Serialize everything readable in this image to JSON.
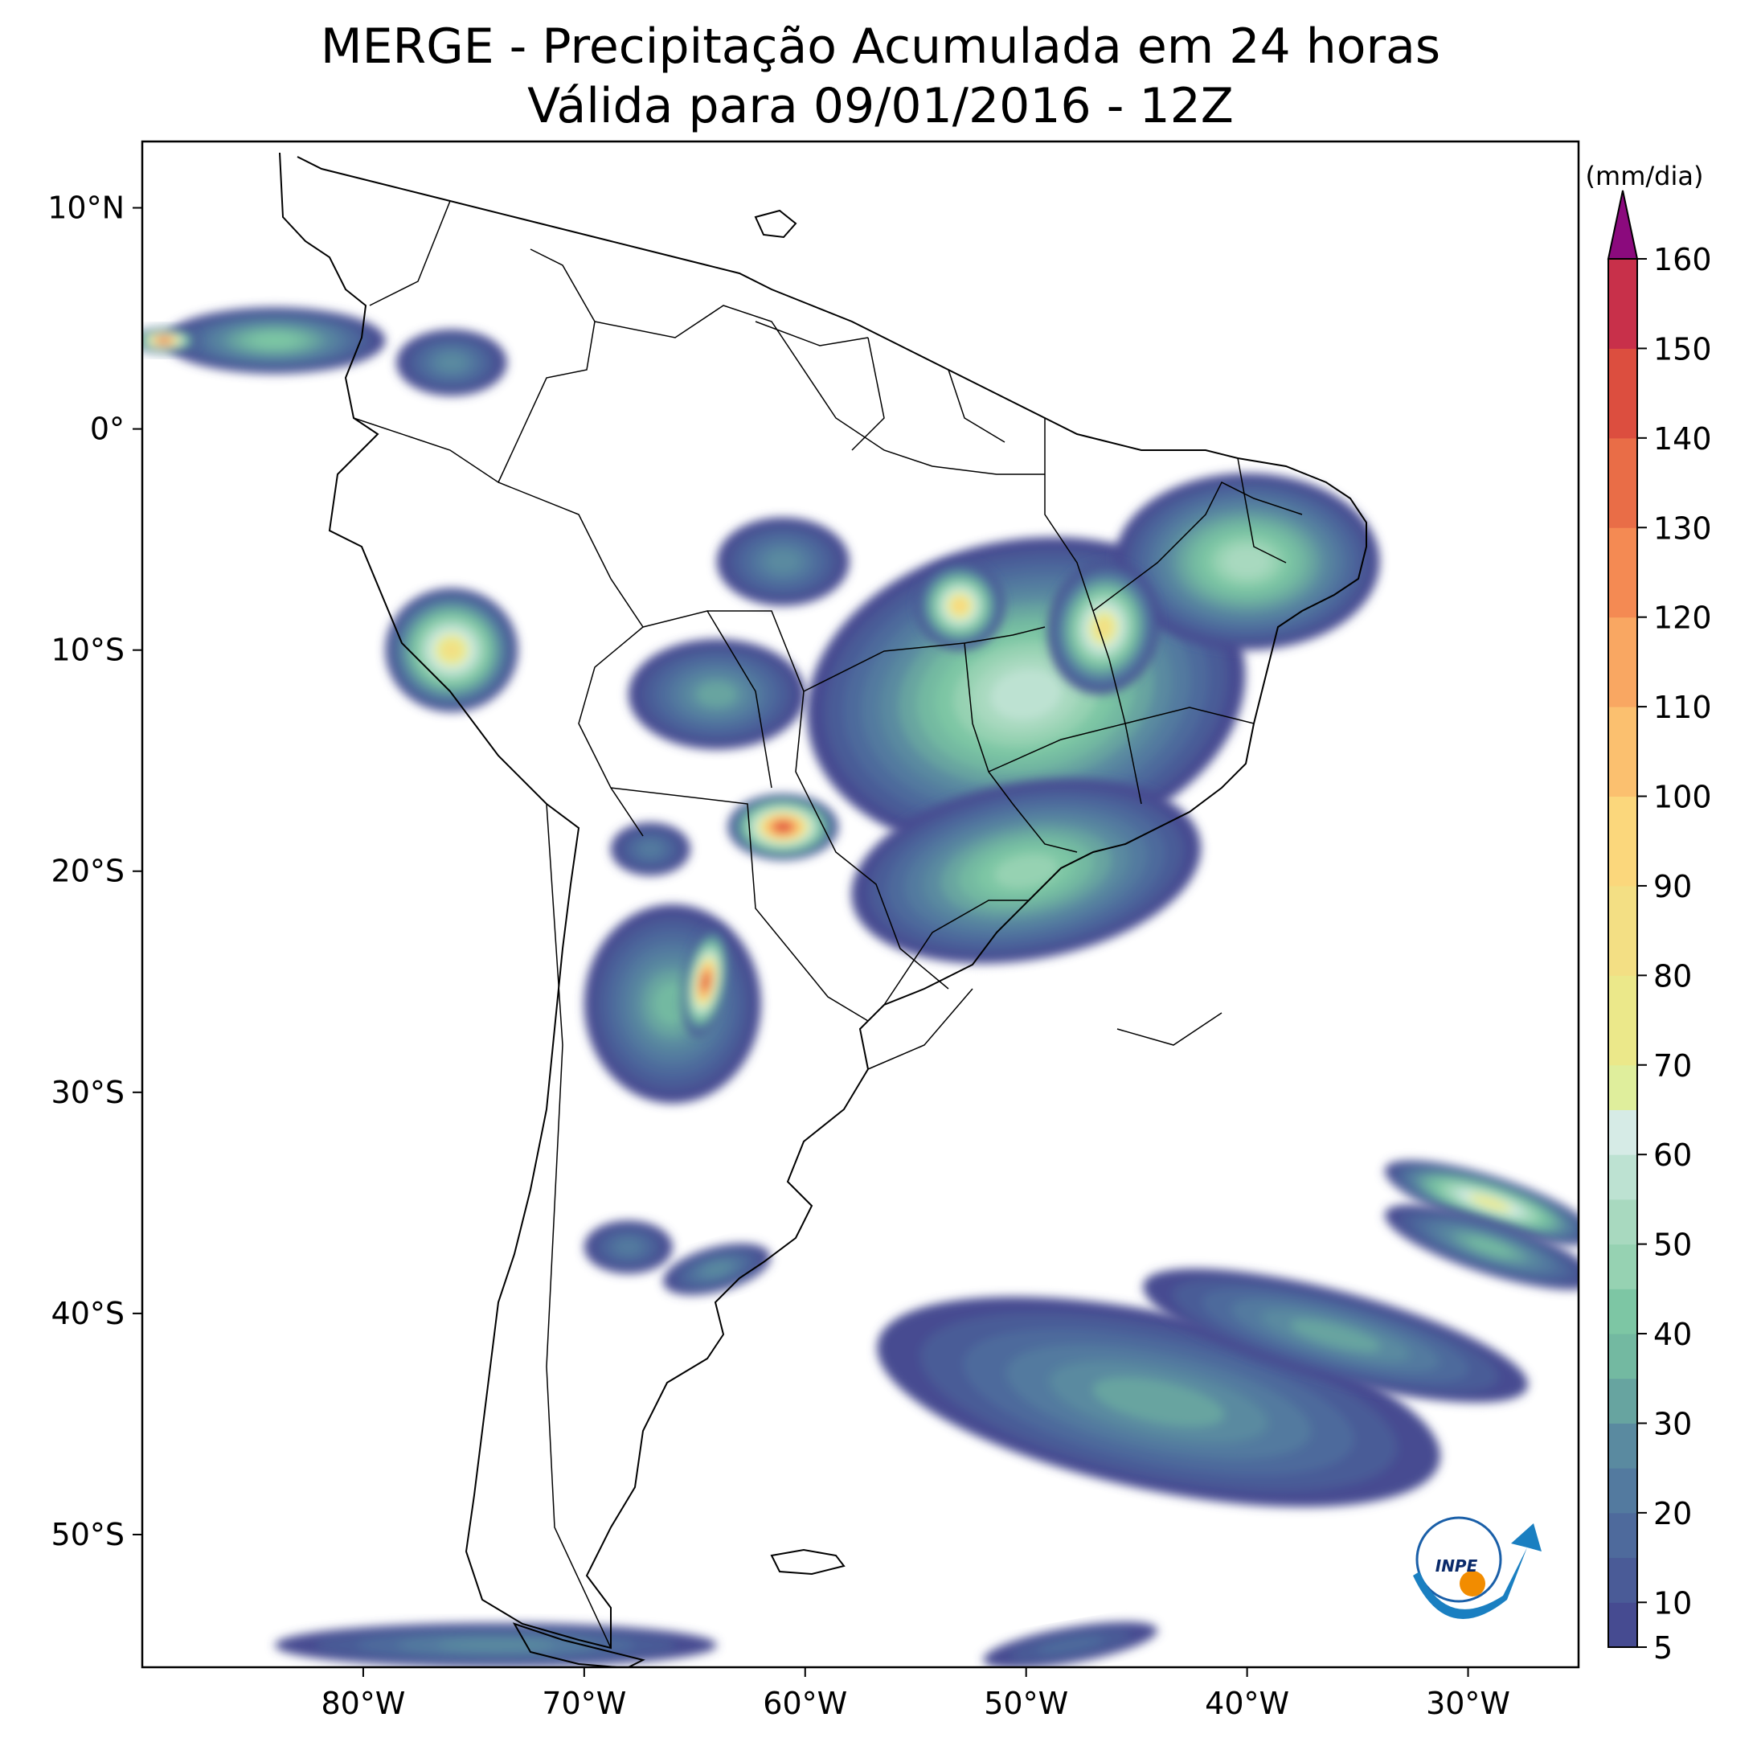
{
  "title": {
    "line1": "MERGE - Precipitação Acumulada em 24 horas",
    "line2": "Válida para 09/01/2016 - 12Z"
  },
  "map": {
    "lon_range": [
      -90,
      -25
    ],
    "lat_range": [
      -56,
      13
    ],
    "lon_ticks": [
      {
        "value": -80,
        "label": "80°W"
      },
      {
        "value": -70,
        "label": "70°W"
      },
      {
        "value": -60,
        "label": "60°W"
      },
      {
        "value": -50,
        "label": "50°W"
      },
      {
        "value": -40,
        "label": "40°W"
      },
      {
        "value": -30,
        "label": "30°W"
      }
    ],
    "lat_ticks": [
      {
        "value": 10,
        "label": "10°N"
      },
      {
        "value": 0,
        "label": "0°"
      },
      {
        "value": -10,
        "label": "10°S"
      },
      {
        "value": -20,
        "label": "20°S"
      },
      {
        "value": -30,
        "label": "30°S"
      },
      {
        "value": -40,
        "label": "40°S"
      },
      {
        "value": -50,
        "label": "50°S"
      }
    ],
    "rain_areas": [
      {
        "name": "amazon-brazil-central",
        "lon": -50,
        "lat": -12,
        "rx": 10,
        "ry": 7,
        "rot": -10,
        "peak": 60
      },
      {
        "name": "northeast-brazil",
        "lon": -40,
        "lat": -6,
        "rx": 6,
        "ry": 4,
        "rot": 0,
        "peak": 55
      },
      {
        "name": "tocantins-core",
        "lon": -46.5,
        "lat": -9,
        "rx": 2.5,
        "ry": 3,
        "rot": 10,
        "peak": 90
      },
      {
        "name": "mato-grosso",
        "lon": -53,
        "lat": -8,
        "rx": 2,
        "ry": 2,
        "rot": 0,
        "peak": 100
      },
      {
        "name": "south-central-brazil",
        "lon": -50,
        "lat": -20,
        "rx": 8,
        "ry": 4,
        "rot": -10,
        "peak": 50
      },
      {
        "name": "rondonia-bolivia",
        "lon": -64,
        "lat": -12,
        "rx": 4,
        "ry": 2.5,
        "rot": 0,
        "peak": 35
      },
      {
        "name": "amazonas-north",
        "lon": -61,
        "lat": -6,
        "rx": 3,
        "ry": 2,
        "rot": 0,
        "peak": 30
      },
      {
        "name": "peru",
        "lon": -76,
        "lat": -10,
        "rx": 3,
        "ry": 2.8,
        "rot": 0,
        "peak": 90
      },
      {
        "name": "mato-grosso-sul-hotspot",
        "lon": -61,
        "lat": -18,
        "rx": 2.5,
        "ry": 1.5,
        "rot": 0,
        "peak": 150
      },
      {
        "name": "paraguay-bolivia-west",
        "lon": -67,
        "lat": -19,
        "rx": 1.8,
        "ry": 1.2,
        "rot": 0,
        "peak": 25
      },
      {
        "name": "argentina-north",
        "lon": -66,
        "lat": -26,
        "rx": 4,
        "ry": 4.5,
        "rot": 0,
        "peak": 40
      },
      {
        "name": "argentina-north-core",
        "lon": -64.5,
        "lat": -25,
        "rx": 1,
        "ry": 2.5,
        "rot": 10,
        "peak": 150
      },
      {
        "name": "argentina-central",
        "lon": -68,
        "lat": -37,
        "rx": 2,
        "ry": 1.2,
        "rot": 0,
        "peak": 25
      },
      {
        "name": "argentina-south-central",
        "lon": -64,
        "lat": -38,
        "rx": 2.5,
        "ry": 1,
        "rot": -15,
        "peak": 30
      },
      {
        "name": "colombia-pacific",
        "lon": -84,
        "lat": 4,
        "rx": 5,
        "ry": 1.5,
        "rot": 0,
        "peak": 45
      },
      {
        "name": "colombia-pacific-core",
        "lon": -89,
        "lat": 4,
        "rx": 1.5,
        "ry": 0.6,
        "rot": 0,
        "peak": 150
      },
      {
        "name": "colombia-east",
        "lon": -76,
        "lat": 3,
        "rx": 2.5,
        "ry": 1.5,
        "rot": 0,
        "peak": 30
      },
      {
        "name": "atlantic-south-band",
        "lon": -44,
        "lat": -44,
        "rx": 13,
        "ry": 4,
        "rot": 12,
        "peak": 35
      },
      {
        "name": "atlantic-south-band-2",
        "lon": -36,
        "lat": -41,
        "rx": 9,
        "ry": 2,
        "rot": 15,
        "peak": 35
      },
      {
        "name": "atlantic-east-band",
        "lon": -29,
        "lat": -35,
        "rx": 5,
        "ry": 1.2,
        "rot": 18,
        "peak": 80
      },
      {
        "name": "atlantic-east-band-2",
        "lon": -29,
        "lat": -37,
        "rx": 5,
        "ry": 1.2,
        "rot": 18,
        "peak": 40
      },
      {
        "name": "drake-passage",
        "lon": -74,
        "lat": -55,
        "rx": 10,
        "ry": 1,
        "rot": 0,
        "peak": 30
      },
      {
        "name": "drake-passage-east",
        "lon": -48,
        "lat": -55,
        "rx": 4,
        "ry": 0.8,
        "rot": -10,
        "peak": 20
      }
    ]
  },
  "colorbar": {
    "unit": "(mm/dia)",
    "min": 5,
    "max": 160,
    "tick_labels": [
      "5",
      "10",
      "20",
      "30",
      "40",
      "50",
      "60",
      "70",
      "80",
      "90",
      "100",
      "110",
      "120",
      "130",
      "140",
      "150",
      "160"
    ],
    "tick_values": [
      5,
      10,
      20,
      30,
      40,
      50,
      60,
      70,
      80,
      90,
      100,
      110,
      120,
      130,
      140,
      150,
      160
    ],
    "bins": [
      {
        "lo": 5,
        "hi": 10,
        "color": "#464b91"
      },
      {
        "lo": 10,
        "hi": 15,
        "color": "#4a5b97"
      },
      {
        "lo": 15,
        "hi": 20,
        "color": "#4e6a9c"
      },
      {
        "lo": 20,
        "hi": 25,
        "color": "#537a9f"
      },
      {
        "lo": 25,
        "hi": 30,
        "color": "#5a8aa0"
      },
      {
        "lo": 30,
        "hi": 35,
        "color": "#67a4a0"
      },
      {
        "lo": 35,
        "hi": 40,
        "color": "#73b9a1"
      },
      {
        "lo": 40,
        "hi": 45,
        "color": "#7dc6a4"
      },
      {
        "lo": 45,
        "hi": 50,
        "color": "#96d2b2"
      },
      {
        "lo": 50,
        "hi": 55,
        "color": "#a8d9bf"
      },
      {
        "lo": 55,
        "hi": 60,
        "color": "#bde2d2"
      },
      {
        "lo": 60,
        "hi": 65,
        "color": "#d6ebe6"
      },
      {
        "lo": 65,
        "hi": 70,
        "color": "#dfee9c"
      },
      {
        "lo": 70,
        "hi": 80,
        "color": "#ebe88a"
      },
      {
        "lo": 80,
        "hi": 90,
        "color": "#f3df84"
      },
      {
        "lo": 90,
        "hi": 100,
        "color": "#fbd77c"
      },
      {
        "lo": 100,
        "hi": 110,
        "color": "#fbc06f"
      },
      {
        "lo": 110,
        "hi": 120,
        "color": "#f9a762"
      },
      {
        "lo": 120,
        "hi": 130,
        "color": "#f48a53"
      },
      {
        "lo": 130,
        "hi": 140,
        "color": "#e96d47"
      },
      {
        "lo": 140,
        "hi": 150,
        "color": "#dc4e3f"
      },
      {
        "lo": 150,
        "hi": 160,
        "color": "#c8304a"
      },
      {
        "lo": 160,
        "hi": 999,
        "color": "#8b0a7d"
      }
    ]
  },
  "logo": {
    "text": "INPE"
  }
}
